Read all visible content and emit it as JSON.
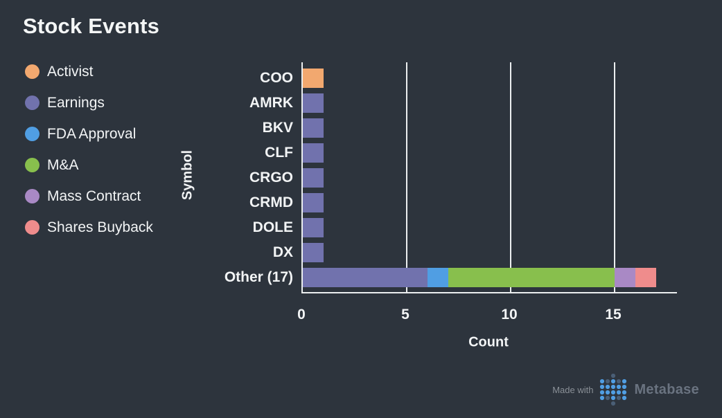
{
  "title": "Stock Events",
  "colors": {
    "background": "#2D343D",
    "text": "#F2F4F5",
    "axis_line": "#ECEFF0",
    "gridline": "#ECEFF0",
    "made_with_text": "#8A9097",
    "metabase_wordmark": "#6A7380",
    "logo_dot_bright": "#509EE3",
    "logo_dot_muted": "#4A5E75"
  },
  "legend": {
    "items": [
      {
        "label": "Activist",
        "color": "#F2A86F"
      },
      {
        "label": "Earnings",
        "color": "#7172AD"
      },
      {
        "label": "FDA Approval",
        "color": "#509EE3"
      },
      {
        "label": "M&A",
        "color": "#88BF4D"
      },
      {
        "label": "Mass Contract",
        "color": "#A989C5"
      },
      {
        "label": "Shares Buyback",
        "color": "#EF8C8C"
      }
    ]
  },
  "chart_data": {
    "type": "bar",
    "orientation": "horizontal",
    "stacked": true,
    "title": "Stock Events",
    "xlabel": "Count",
    "ylabel": "Symbol",
    "xlim": [
      0,
      18
    ],
    "x_ticks": [
      0,
      5,
      10,
      15
    ],
    "grid": "vertical-lines",
    "legend_position": "top-left",
    "categories": [
      "COO",
      "AMRK",
      "BKV",
      "CLF",
      "CRGO",
      "CRMD",
      "DOLE",
      "DX",
      "Other (17)"
    ],
    "series": [
      {
        "name": "Activist",
        "color": "#F2A86F",
        "values": [
          1,
          0,
          0,
          0,
          0,
          0,
          0,
          0,
          0
        ]
      },
      {
        "name": "Earnings",
        "color": "#7172AD",
        "values": [
          0,
          1,
          1,
          1,
          1,
          1,
          1,
          1,
          6
        ]
      },
      {
        "name": "FDA Approval",
        "color": "#509EE3",
        "values": [
          0,
          0,
          0,
          0,
          0,
          0,
          0,
          0,
          1
        ]
      },
      {
        "name": "M&A",
        "color": "#88BF4D",
        "values": [
          0,
          0,
          0,
          0,
          0,
          0,
          0,
          0,
          8
        ]
      },
      {
        "name": "Mass Contract",
        "color": "#A989C5",
        "values": [
          0,
          0,
          0,
          0,
          0,
          0,
          0,
          0,
          1
        ]
      },
      {
        "name": "Shares Buyback",
        "color": "#EF8C8C",
        "values": [
          0,
          0,
          0,
          0,
          0,
          0,
          0,
          0,
          1
        ]
      }
    ]
  },
  "footer": {
    "made_with": "Made with",
    "brand": "Metabase"
  }
}
